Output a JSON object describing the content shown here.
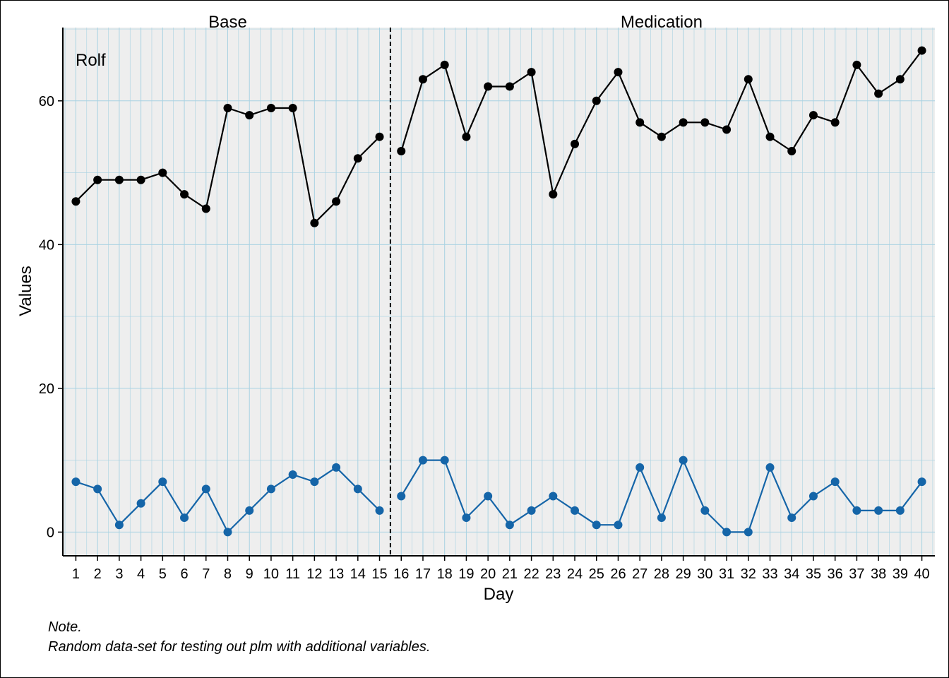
{
  "chart_data": {
    "type": "line",
    "case_label": "Rolf",
    "phases": [
      {
        "name": "Base",
        "start": 1,
        "end": 15
      },
      {
        "name": "Medication",
        "start": 16,
        "end": 40
      }
    ],
    "x": [
      1,
      2,
      3,
      4,
      5,
      6,
      7,
      8,
      9,
      10,
      11,
      12,
      13,
      14,
      15,
      16,
      17,
      18,
      19,
      20,
      21,
      22,
      23,
      24,
      25,
      26,
      27,
      28,
      29,
      30,
      31,
      32,
      33,
      34,
      35,
      36,
      37,
      38,
      39,
      40
    ],
    "series": [
      {
        "color": "#000000",
        "values": [
          46,
          49,
          49,
          49,
          50,
          47,
          45,
          59,
          58,
          59,
          59,
          43,
          46,
          52,
          55,
          53,
          63,
          65,
          55,
          62,
          62,
          64,
          47,
          54,
          60,
          64,
          57,
          55,
          57,
          57,
          56,
          63,
          55,
          53,
          58,
          57,
          65,
          61,
          63,
          67
        ]
      },
      {
        "color": "#1565a8",
        "values": [
          7,
          6,
          1,
          4,
          7,
          2,
          6,
          0,
          3,
          6,
          8,
          7,
          9,
          6,
          3,
          5,
          10,
          10,
          2,
          5,
          1,
          3,
          5,
          3,
          1,
          1,
          9,
          2,
          10,
          3,
          0,
          0,
          9,
          2,
          5,
          7,
          3,
          3,
          3,
          7
        ]
      }
    ],
    "xlabel": "Day",
    "ylabel": "Values",
    "yticks": [
      0,
      20,
      40,
      60
    ],
    "ylim": [
      -3.3,
      70.2
    ],
    "xlim": [
      0.4,
      40.6
    ],
    "grid": true,
    "minor_grid": true,
    "panel_color": "#eeeeee",
    "grid_color": "#a8d2e2",
    "phase_separator_style": "dashed"
  },
  "note": {
    "title": "Note.",
    "text": "Random data-set for testing out plm with additional variables."
  }
}
